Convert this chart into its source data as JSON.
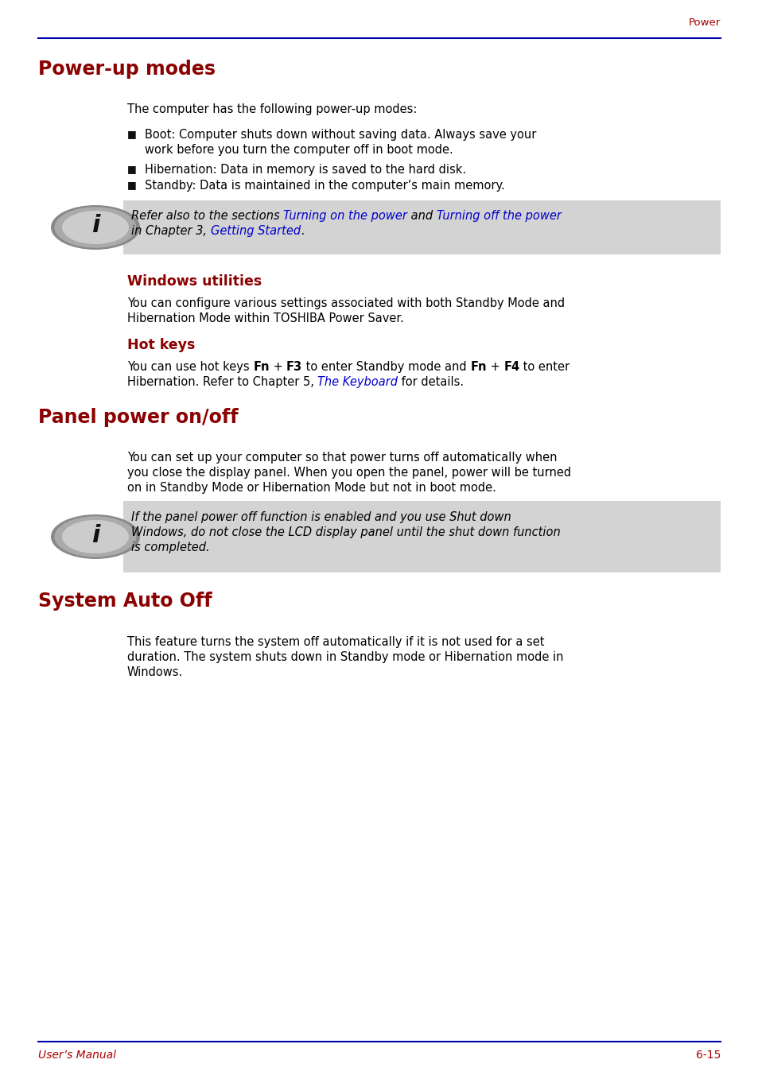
{
  "bg_color": "#ffffff",
  "header_line_color": "#0000aa",
  "header_text": "Power",
  "header_text_color": "#aa0000",
  "footer_line_color": "#0000aa",
  "footer_left": "User’s Manual",
  "footer_right": "6-15",
  "footer_text_color": "#aa0000",
  "h1_color": "#8b0000",
  "h2_color": "#8b0000",
  "body_color": "#000000",
  "link_color": "#0000cc",
  "note_bg": "#d3d3d3",
  "bullet_color": "#000000"
}
